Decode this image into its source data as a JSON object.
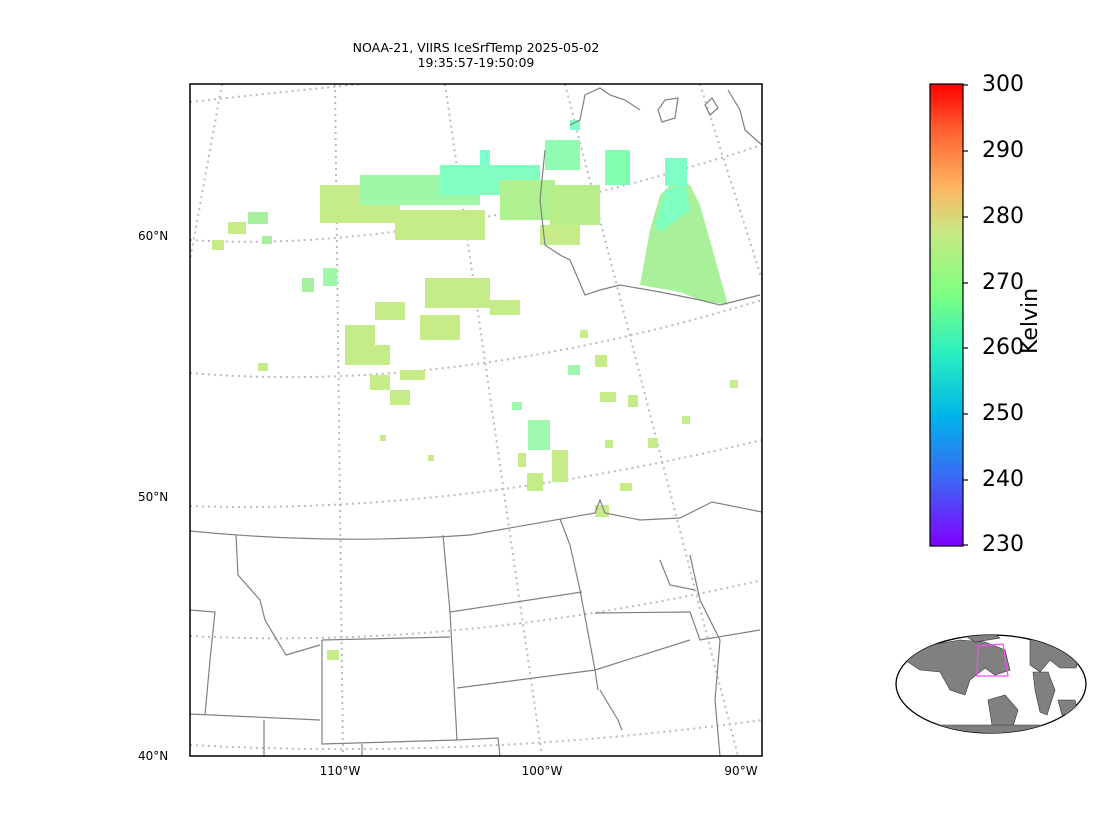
{
  "map": {
    "title_line1": "NOAA-21, VIIRS IceSrfTemp 2025-05-02",
    "title_line2": "19:35:57-19:50:09",
    "lat_labels": [
      "60°N",
      "50°N",
      "40°N"
    ],
    "lon_labels": [
      "110°W",
      "100°W",
      "90°W"
    ],
    "cold_color": "#7fffd4",
    "warm_color": "#c6ec8a"
  },
  "colorbar": {
    "label": "Kelvin",
    "ticks": [
      "300",
      "290",
      "280",
      "270",
      "260",
      "250",
      "240",
      "230"
    ],
    "min": 230,
    "max": 300,
    "colormap": "rainbow"
  },
  "inset": {
    "land_color": "#808080",
    "box_color": "#ff44ff"
  }
}
